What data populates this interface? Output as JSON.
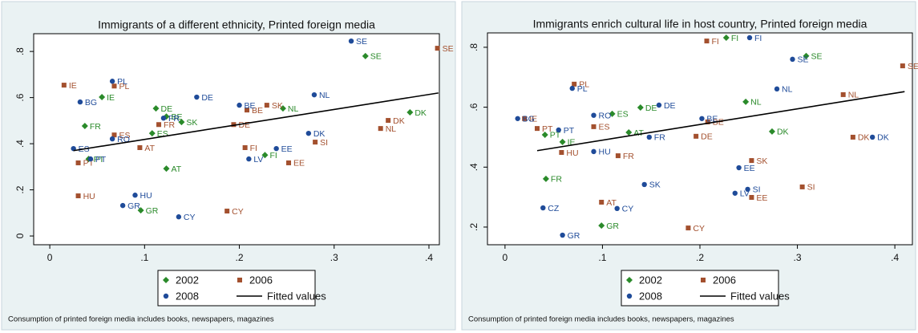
{
  "chart_data": [
    {
      "type": "scatter",
      "title": "Immigrants of a different ethnicity, Printed foreign media",
      "note": "Consumption of printed foreign media includes books, newspapers, magazines",
      "xlim": [
        -0.017,
        0.411
      ],
      "ylim": [
        -0.038,
        0.877
      ],
      "xticks": [
        0,
        {
          "value": 0.1,
          "label": ".1"
        },
        {
          "value": 0.2,
          "label": ".2"
        },
        {
          "value": 0.3,
          "label": ".3"
        },
        {
          "value": 0.4,
          "label": ".4"
        }
      ],
      "yticks": [
        0,
        {
          "value": 0.2,
          "label": ".2"
        },
        {
          "value": 0.4,
          "label": ".4"
        },
        {
          "value": 0.6,
          "label": ".6"
        },
        {
          "value": 0.8,
          "label": ".8"
        }
      ],
      "series": [
        {
          "name": "2002",
          "color": "#2a8a2a",
          "marker": "diamond",
          "labels": [
            "SE",
            "IE",
            "DE",
            "FR",
            "BE",
            "SK",
            "ES",
            "PT",
            "AT",
            "GR",
            "FI",
            "NL",
            "DK"
          ],
          "x": [
            0.333,
            0.055,
            0.112,
            0.037,
            0.123,
            0.139,
            0.108,
            0.041,
            0.123,
            0.096,
            0.227,
            0.246,
            0.38
          ],
          "values": [
            0.78,
            0.602,
            0.553,
            0.477,
            0.518,
            0.494,
            0.445,
            0.334,
            0.292,
            0.111,
            0.351,
            0.553,
            0.536
          ]
        },
        {
          "name": "2006",
          "color": "#a3502e",
          "marker": "square",
          "labels": [
            "SE",
            "IE",
            "PL",
            "SK",
            "BE",
            "FR",
            "DE",
            "SI",
            "DK",
            "NL",
            "ES",
            "AT",
            "FI",
            "EE",
            "PT",
            "HU",
            "CY"
          ],
          "x": [
            0.409,
            0.015,
            0.068,
            0.229,
            0.208,
            0.115,
            0.194,
            0.28,
            0.357,
            0.349,
            0.068,
            0.095,
            0.206,
            0.252,
            0.03,
            0.03,
            0.187
          ],
          "values": [
            0.814,
            0.654,
            0.65,
            0.567,
            0.546,
            0.483,
            0.483,
            0.407,
            0.501,
            0.466,
            0.438,
            0.383,
            0.383,
            0.317,
            0.317,
            0.174,
            0.108
          ]
        },
        {
          "name": "2008",
          "color": "#1f4b99",
          "marker": "circle",
          "labels": [
            "SE",
            "PL",
            "BG",
            "DE",
            "NL",
            "BE",
            "FR",
            "DK",
            "ES",
            "RO",
            "PT",
            "EE",
            "LV",
            "HU",
            "GR",
            "CY"
          ],
          "x": [
            0.318,
            0.066,
            0.032,
            0.155,
            0.279,
            0.2,
            0.12,
            0.273,
            0.025,
            0.066,
            0.043,
            0.239,
            0.21,
            0.09,
            0.077,
            0.136
          ],
          "values": [
            0.845,
            0.671,
            0.581,
            0.602,
            0.612,
            0.567,
            0.511,
            0.445,
            0.379,
            0.421,
            0.334,
            0.379,
            0.334,
            0.177,
            0.132,
            0.083
          ]
        },
        {
          "name": "Fitted values",
          "color": "#000000",
          "marker": "line",
          "x": [
            0.025,
            0.41
          ],
          "values": [
            0.37,
            0.62
          ]
        }
      ]
    },
    {
      "type": "scatter",
      "title": "Immigrants enrich cultural life in host country, Printed foreign media",
      "note": "Consumption of printed foreign media includes books, newspapers, magazines",
      "xlim": [
        -0.018,
        0.418
      ],
      "ylim": [
        0.141,
        0.848
      ],
      "xticks": [
        0,
        {
          "value": 0.1,
          "label": ".1"
        },
        {
          "value": 0.2,
          "label": ".2"
        },
        {
          "value": 0.3,
          "label": ".3"
        },
        {
          "value": 0.4,
          "label": ".4"
        }
      ],
      "yticks": [
        {
          "value": 0.2,
          "label": ".2"
        },
        {
          "value": 0.4,
          "label": ".4"
        },
        {
          "value": 0.6,
          "label": ".6"
        },
        {
          "value": 0.8,
          "label": ".8"
        }
      ],
      "series": [
        {
          "name": "2002",
          "color": "#2a8a2a",
          "marker": "diamond",
          "labels": [
            "FI",
            "SE",
            "NL",
            "DE",
            "ES",
            "AT",
            "PT",
            "IE",
            "DK",
            "FR",
            "GR"
          ],
          "x": [
            0.227,
            0.309,
            0.247,
            0.139,
            0.11,
            0.127,
            0.041,
            0.059,
            0.274,
            0.042,
            0.099
          ],
          "values": [
            0.832,
            0.771,
            0.618,
            0.599,
            0.578,
            0.516,
            0.508,
            0.484,
            0.519,
            0.361,
            0.205
          ]
        },
        {
          "name": "2006",
          "color": "#a3502e",
          "marker": "square",
          "labels": [
            "FI",
            "SE",
            "PL",
            "NL",
            "IE",
            "BE",
            "ES",
            "PT",
            "DE",
            "DK",
            "HU",
            "FR",
            "SK",
            "SI",
            "EE",
            "AT",
            "CY"
          ],
          "x": [
            0.207,
            0.408,
            0.071,
            0.347,
            0.02,
            0.208,
            0.091,
            0.033,
            0.196,
            0.357,
            0.058,
            0.116,
            0.253,
            0.305,
            0.253,
            0.099,
            0.188
          ],
          "values": [
            0.821,
            0.738,
            0.677,
            0.642,
            0.562,
            0.551,
            0.535,
            0.529,
            0.503,
            0.5,
            0.449,
            0.438,
            0.422,
            0.334,
            0.299,
            0.283,
            0.197
          ]
        },
        {
          "name": "2008",
          "color": "#1f4b99",
          "marker": "circle",
          "labels": [
            "FI",
            "SE",
            "PL",
            "NL",
            "DE",
            "BG",
            "RO",
            "BE",
            "PT",
            "FR",
            "DK",
            "HU",
            "EE",
            "SK",
            "SI",
            "LV",
            "CZ",
            "CY",
            "GR"
          ],
          "x": [
            0.251,
            0.295,
            0.069,
            0.279,
            0.158,
            0.013,
            0.091,
            0.202,
            0.055,
            0.148,
            0.377,
            0.091,
            0.24,
            0.143,
            0.249,
            0.236,
            0.039,
            0.115,
            0.059
          ],
          "values": [
            0.832,
            0.76,
            0.663,
            0.661,
            0.607,
            0.562,
            0.573,
            0.562,
            0.524,
            0.5,
            0.5,
            0.452,
            0.398,
            0.342,
            0.326,
            0.313,
            0.264,
            0.262,
            0.173
          ]
        },
        {
          "name": "Fitted values",
          "color": "#000000",
          "marker": "line",
          "x": [
            0.033,
            0.41
          ],
          "values": [
            0.455,
            0.652
          ]
        }
      ]
    }
  ]
}
